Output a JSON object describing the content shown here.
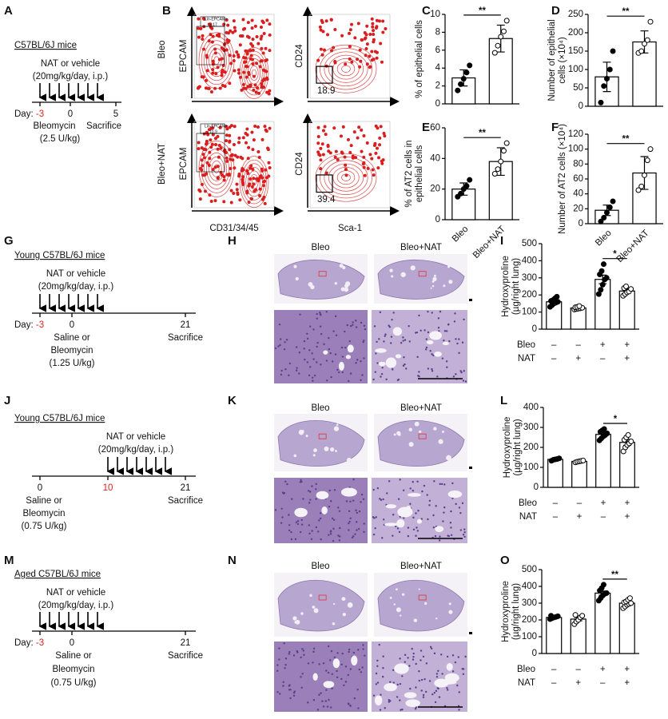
{
  "panel_labels": [
    "A",
    "B",
    "C",
    "D",
    "E",
    "F",
    "G",
    "H",
    "I",
    "J",
    "K",
    "L",
    "M",
    "N",
    "O"
  ],
  "timelines": [
    {
      "title": "C57BL/6J mice",
      "treatment": [
        "NAT or vehicle",
        "(20mg/kg/day, i.p.)"
      ],
      "day_label": "Day:",
      "days": [
        "-3",
        "0",
        "5"
      ],
      "notes": [
        "Bleomycin",
        "Sacrifice",
        "(2.5 U/kg)"
      ]
    },
    {
      "title": "Young C57BL/6J mice",
      "treatment": [
        "NAT or vehicle",
        "(20mg/kg/day, i.p.)"
      ],
      "day_label": "Day:",
      "days": [
        "-3",
        "0",
        "21"
      ],
      "notes": [
        "Saline or",
        "Bleomycin",
        "(1.25 U/kg)",
        "Sacrifice"
      ]
    },
    {
      "title": "Young C57BL/6J mice",
      "treatment": [
        "NAT or vehicle",
        "(20mg/kg/day, i.p.)"
      ],
      "days": [
        "0",
        "10",
        "21"
      ],
      "notes": [
        "Saline or",
        "Bleomycin",
        "(0.75 U/kg)",
        "Sacrifice"
      ]
    },
    {
      "title": "Aged C57BL/6J mice",
      "treatment": [
        "NAT or vehicle",
        "(20mg/kg/day, i.p.)"
      ],
      "day_label": "Day:",
      "days": [
        "-3",
        "0",
        "21"
      ],
      "notes": [
        "Saline or",
        "Bleomycin",
        "(0.75 U/kg)",
        "Sacrifice"
      ]
    }
  ],
  "flow": {
    "rows": [
      "Bleo",
      "Bleo+NAT"
    ],
    "y_axes": [
      "EPCAM",
      "CD24"
    ],
    "x_axes": [
      "CD31/34/45",
      "Sca-1"
    ],
    "gate_name": "Lin-EPCAM+",
    "gate_values": [
      "5.17",
      "10.9"
    ],
    "quadrant_values": [
      "18.9",
      "39.4"
    ]
  },
  "histology": [
    {
      "columns": [
        "Bleo",
        "Bleo+NAT"
      ]
    },
    {
      "columns": [
        "Bleo",
        "Bleo+NAT"
      ]
    },
    {
      "columns": [
        "Bleo",
        "Bleo+NAT"
      ]
    }
  ],
  "chart_data": [
    {
      "type": "bar",
      "ylabel": [
        "% of epithelial cells"
      ],
      "categories": [
        null,
        null
      ],
      "values": [
        2.9,
        7.3
      ],
      "errors": [
        0.9,
        1.5
      ],
      "dots": [
        [
          1.5,
          2.2,
          2.8,
          3.5,
          4.3
        ],
        [
          5.7,
          6.5,
          7.5,
          8.1,
          9.3
        ]
      ],
      "dot_fills": [
        "#000000",
        "#ffffff"
      ],
      "color": "#ffffff",
      "ylim": [
        0,
        10
      ],
      "yticks": [
        0,
        2,
        4,
        6,
        8,
        10
      ],
      "significance": "**"
    },
    {
      "type": "bar",
      "ylabel": [
        "Number of epithelial",
        "cells (×10⁴)"
      ],
      "categories": [
        null,
        null
      ],
      "values": [
        80,
        175
      ],
      "errors": [
        40,
        30
      ],
      "dots": [
        [
          10,
          55,
          75,
          100,
          150
        ],
        [
          145,
          150,
          170,
          180,
          230
        ]
      ],
      "dot_fills": [
        "#000000",
        "#ffffff"
      ],
      "color": "#ffffff",
      "ylim": [
        0,
        250
      ],
      "yticks": [
        0,
        50,
        100,
        150,
        200,
        250
      ],
      "significance": "**"
    },
    {
      "type": "bar",
      "ylabel": [
        "% of AT2 cells in",
        "epithelial cells"
      ],
      "categories": [
        "Bleo",
        "Bleo+NAT"
      ],
      "values": [
        20,
        38
      ],
      "errors": [
        4,
        9
      ],
      "dots": [
        [
          15,
          17,
          20,
          22,
          26
        ],
        [
          30,
          33,
          38,
          45,
          50
        ]
      ],
      "dot_fills": [
        "#000000",
        "#ffffff"
      ],
      "color": "#ffffff",
      "ylim": [
        0,
        60
      ],
      "yticks": [
        0,
        20,
        40,
        60
      ],
      "significance": "**"
    },
    {
      "type": "bar",
      "ylabel": [
        "Number of AT2 cells (×10⁴)"
      ],
      "categories": [
        "Bleo",
        "Bleo+NAT"
      ],
      "values": [
        18,
        68
      ],
      "errors": [
        7,
        22
      ],
      "dots": [
        [
          3,
          8,
          15,
          22,
          30
        ],
        [
          45,
          50,
          65,
          85,
          100
        ]
      ],
      "dot_fills": [
        "#000000",
        "#ffffff"
      ],
      "color": "#ffffff",
      "ylim": [
        0,
        120
      ],
      "yticks": [
        0,
        20,
        40,
        60,
        80,
        100,
        120
      ],
      "significance": "**"
    },
    {
      "type": "bar",
      "ylabel": [
        "Hydroxyproline",
        "(µg/right lung)"
      ],
      "categories": [
        null,
        null,
        null,
        null
      ],
      "values": [
        160,
        124,
        291,
        223
      ],
      "errors": [
        12,
        6,
        25,
        12
      ],
      "dots": [
        [
          130,
          140,
          150,
          155,
          160,
          165,
          170,
          180,
          190
        ],
        [
          115,
          118,
          120,
          122,
          125,
          128,
          130,
          135
        ],
        [
          205,
          230,
          260,
          290,
          300,
          320,
          340,
          380
        ],
        [
          195,
          205,
          215,
          220,
          235,
          240,
          250
        ]
      ],
      "dot_fills": [
        "#000000",
        "#ffffff",
        "#000000",
        "#ffffff"
      ],
      "color": "#ffffff",
      "conditions": [
        {
          "name": "Bleo",
          "signs": [
            "–",
            "–",
            "+",
            "+"
          ]
        },
        {
          "name": "NAT",
          "signs": [
            "–",
            "+",
            "–",
            "+"
          ]
        }
      ],
      "ylim": [
        0,
        500
      ],
      "yticks": [
        0,
        100,
        200,
        300,
        400,
        500
      ],
      "significance": "*"
    },
    {
      "type": "bar",
      "ylabel": [
        "Hydroxyproline",
        "(µg/right lung)"
      ],
      "categories": [
        null,
        null,
        null,
        null
      ],
      "values": [
        140,
        130,
        265,
        225
      ],
      "errors": [
        5,
        5,
        12,
        15
      ],
      "dots": [
        [
          133,
          138,
          140,
          142,
          145
        ],
        [
          125,
          128,
          130,
          132,
          134
        ],
        [
          235,
          245,
          255,
          262,
          270,
          278,
          285,
          292
        ],
        [
          180,
          200,
          212,
          220,
          230,
          238,
          250,
          262
        ]
      ],
      "dot_fills": [
        "#000000",
        "#ffffff",
        "#000000",
        "#ffffff"
      ],
      "color": "#ffffff",
      "conditions": [
        {
          "name": "Bleo",
          "signs": [
            "–",
            "–",
            "+",
            "+"
          ]
        },
        {
          "name": "NAT",
          "signs": [
            "–",
            "+",
            "–",
            "+"
          ]
        }
      ],
      "ylim": [
        0,
        400
      ],
      "yticks": [
        0,
        100,
        200,
        300,
        400
      ],
      "significance": "*"
    },
    {
      "type": "bar",
      "ylabel": [
        "Hydroxyproline",
        "(µg/right lung)"
      ],
      "categories": [
        null,
        null,
        null,
        null
      ],
      "values": [
        215,
        205,
        360,
        300
      ],
      "errors": [
        4,
        10,
        12,
        6
      ],
      "dots": [
        [
          205,
          210,
          215,
          218,
          222,
          225
        ],
        [
          175,
          190,
          200,
          215,
          225,
          230
        ],
        [
          315,
          330,
          345,
          355,
          360,
          375,
          390,
          410
        ],
        [
          270,
          280,
          290,
          295,
          300,
          305,
          310,
          320,
          330
        ]
      ],
      "dot_fills": [
        "#000000",
        "#ffffff",
        "#000000",
        "#ffffff"
      ],
      "color": "#ffffff",
      "conditions": [
        {
          "name": "Bleo",
          "signs": [
            "–",
            "–",
            "+",
            "+"
          ]
        },
        {
          "name": "NAT",
          "signs": [
            "–",
            "+",
            "–",
            "+"
          ]
        }
      ],
      "ylim": [
        0,
        500
      ],
      "yticks": [
        0,
        100,
        200,
        300,
        400,
        500
      ],
      "significance": "**"
    }
  ]
}
